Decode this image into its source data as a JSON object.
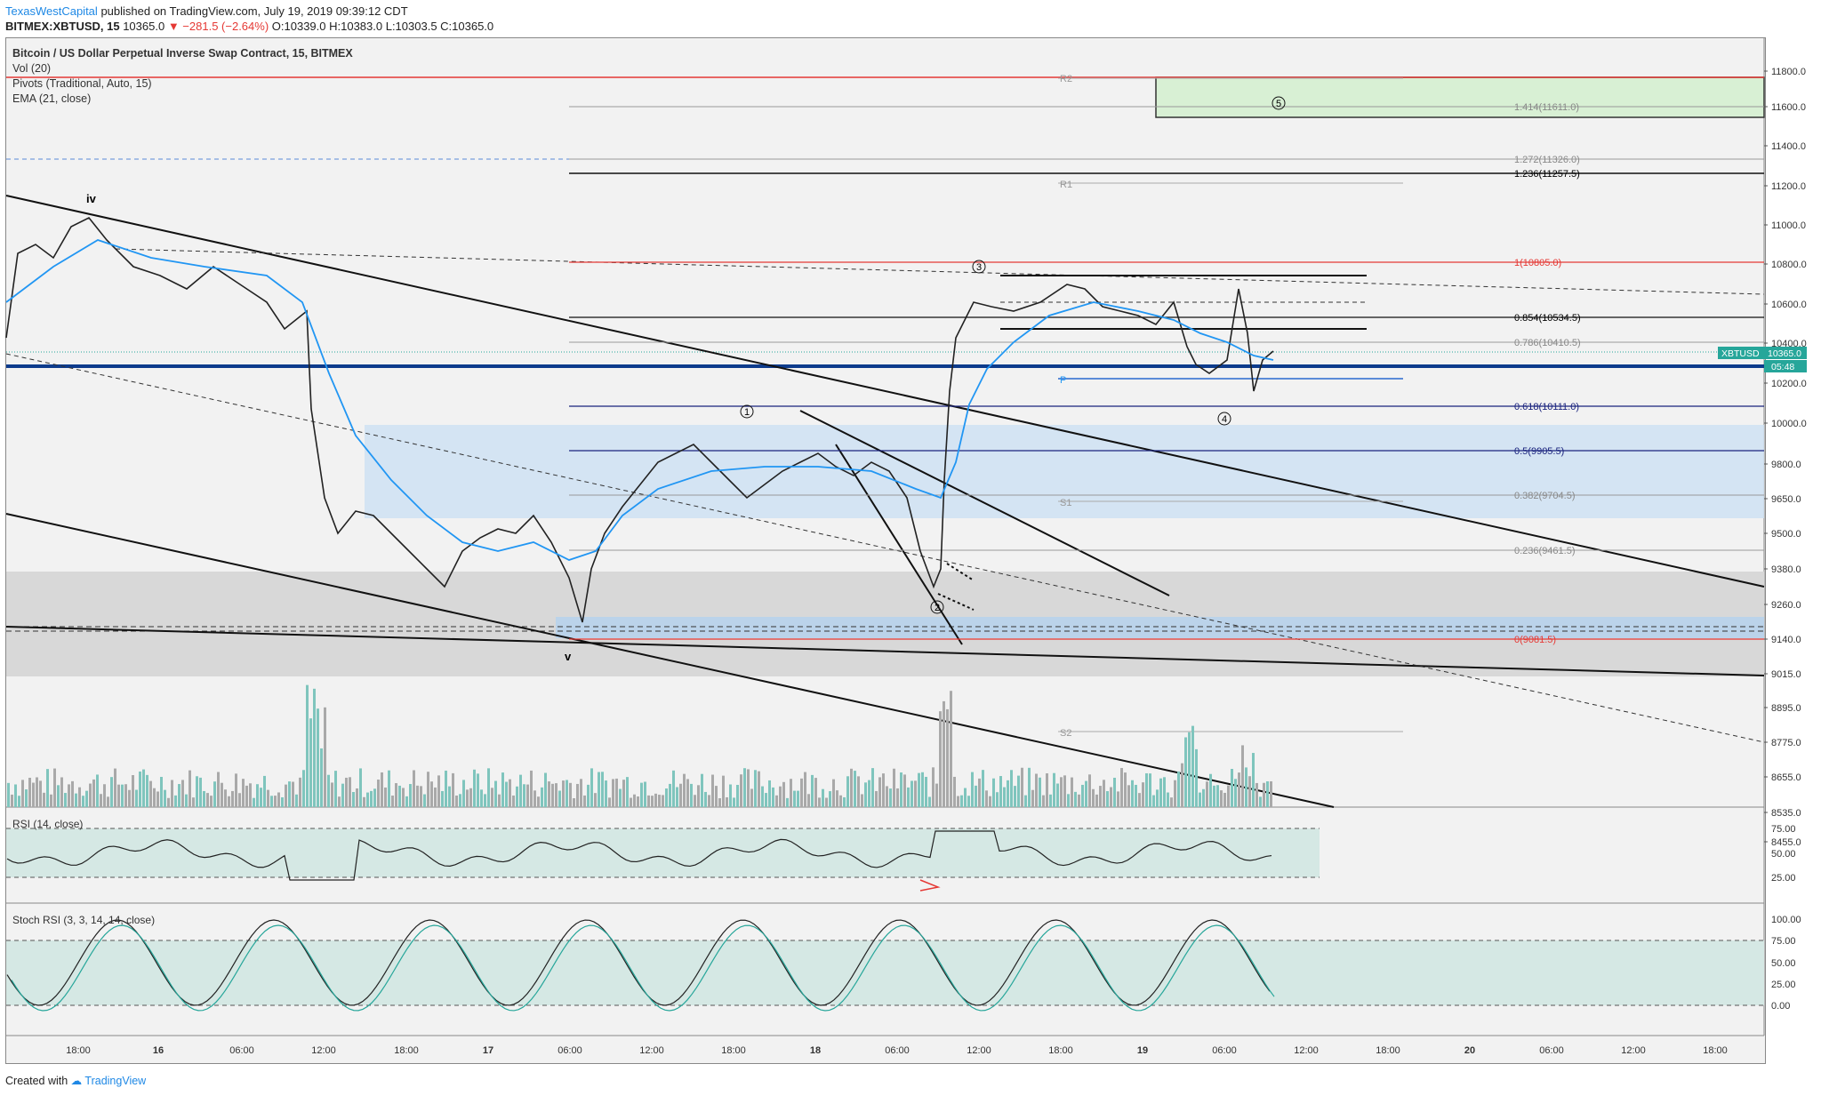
{
  "header": {
    "author": "TexasWestCapital",
    "published": "published on TradingView.com, July 19, 2019 09:39:12 CDT",
    "symbol": "BITMEX:XBTUSD, 15",
    "last": "10365.0",
    "change": "▼ −281.5 (−2.64%)",
    "ohlc": "O:10339.0 H:10383.0 L:10303.5 C:10365.0"
  },
  "legend": {
    "title": "Bitcoin / US Dollar Perpetual Inverse Swap Contract, 15, BITMEX",
    "vol": "Vol (20)",
    "pivots": "Pivots (Traditional, Auto, 15)",
    "ema": "EMA (21, close)"
  },
  "price_axis": [
    "11800.0",
    "11600.0",
    "11400.0",
    "11200.0",
    "11000.0",
    "10800.0",
    "10600.0",
    "10400.0",
    "10200.0",
    "10000.0",
    "9800.0",
    "9650.0",
    "9500.0",
    "9380.0",
    "9260.0",
    "9140.0",
    "9015.0",
    "8895.0",
    "8775.0",
    "8655.0",
    "8535.0",
    "8455.0"
  ],
  "rsi_axis": [
    "75.00",
    "50.00",
    "25.00"
  ],
  "stoch_axis": [
    "100.00",
    "75.00",
    "50.00",
    "25.00",
    "0.00"
  ],
  "time_axis": [
    "18:00",
    "16",
    "06:00",
    "12:00",
    "18:00",
    "17",
    "06:00",
    "12:00",
    "18:00",
    "18",
    "06:00",
    "12:00",
    "18:00",
    "19",
    "06:00",
    "12:00",
    "18:00",
    "20",
    "06:00",
    "12:00",
    "18:00"
  ],
  "price_tag": {
    "symbol": "XBTUSD",
    "price": "10365.0",
    "countdown": "05:48"
  },
  "fib_levels": [
    {
      "label": "1.414(11611.0)",
      "color": "#888888"
    },
    {
      "label": "1.272(11326.0)",
      "color": "#888888"
    },
    {
      "label": "1.236(11257.5)",
      "color": "#000000"
    },
    {
      "label": "1(10805.0)",
      "color": "#e53935"
    },
    {
      "label": "0.854(10534.5)",
      "color": "#000000"
    },
    {
      "label": "0.786(10410.5)",
      "color": "#888888"
    },
    {
      "label": "0.618(10111.0)",
      "color": "#1a237e"
    },
    {
      "label": "0.5(9905.5)",
      "color": "#1a237e"
    },
    {
      "label": "0.382(9704.5)",
      "color": "#888888"
    },
    {
      "label": "0.236(9461.5)",
      "color": "#888888"
    },
    {
      "label": "0(9081.5)",
      "color": "#e53935"
    }
  ],
  "pivots": [
    "R2",
    "R1",
    "P",
    "S1",
    "S2"
  ],
  "wave_labels": [
    "iv",
    "v",
    "1",
    "2",
    "3",
    "4",
    "5"
  ],
  "indicators": {
    "rsi": "RSI (14, close)",
    "stoch": "Stoch RSI (3, 3, 14, 14, close)"
  },
  "footer": {
    "created": "Created with",
    "brand": "TradingView"
  },
  "colors": {
    "ema": "#2196f3",
    "up_candle": "#26a69a",
    "down_candle": "#333333",
    "accent": "#0d3b8c",
    "fib_red": "#e53935",
    "target_box": "#d8f0d4"
  }
}
